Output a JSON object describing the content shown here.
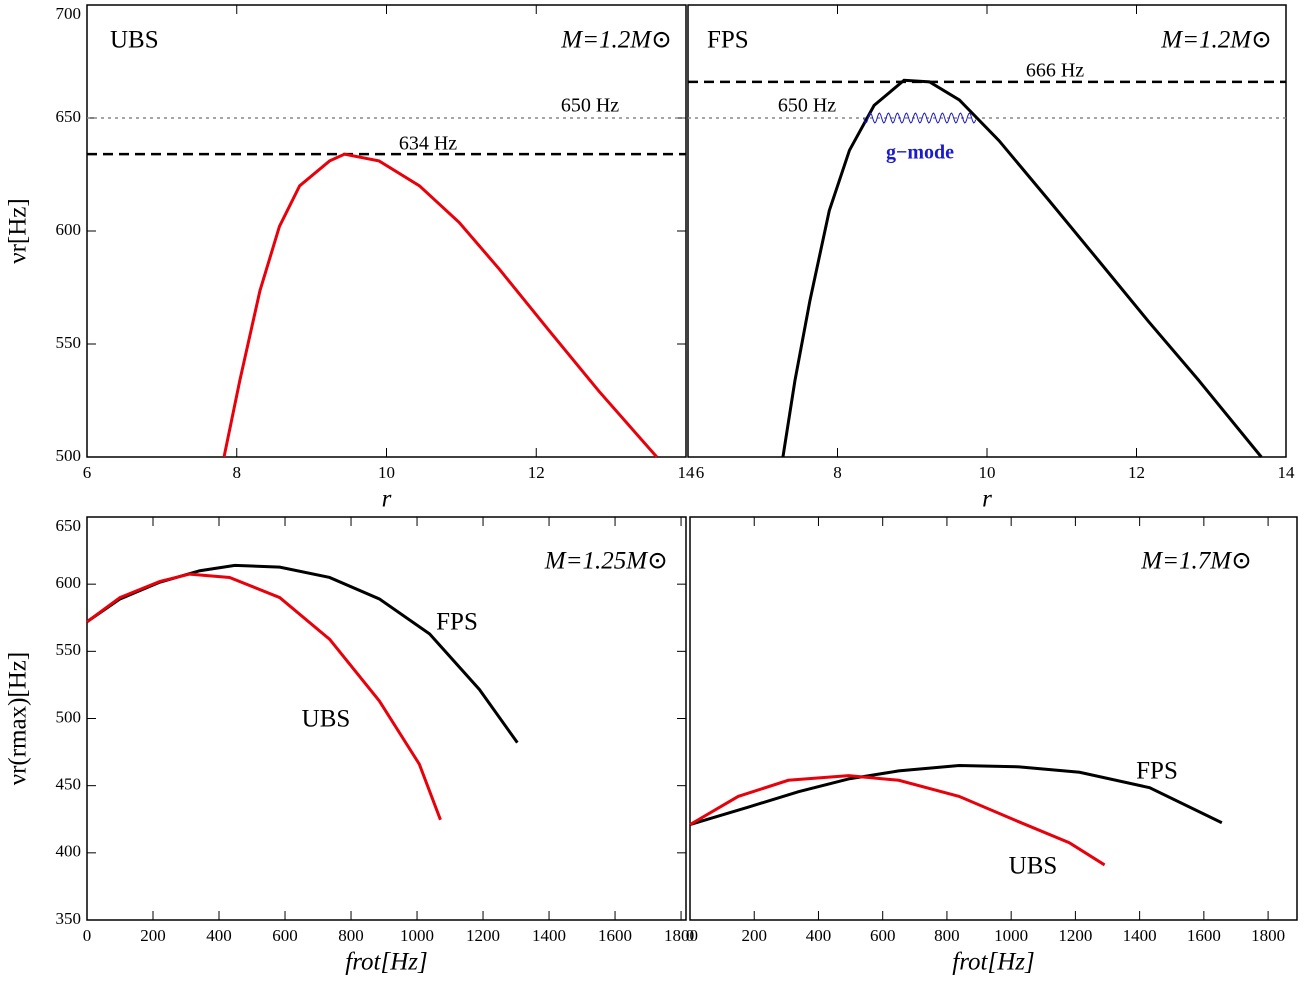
{
  "chart_data": [
    {
      "type": "line",
      "xlim": [
        6,
        14
      ],
      "ylim": [
        500,
        700
      ],
      "xticks": [
        6,
        8,
        10,
        12,
        14
      ],
      "yticks": [
        500,
        550,
        600,
        650,
        700
      ],
      "xlabel": "r",
      "ylabel": "νr[Hz]",
      "series": [
        {
          "name": "UBS",
          "color": "#e8000b",
          "x": [
            7.83,
            8.04,
            8.31,
            8.57,
            8.84,
            9.24,
            9.44,
            9.9,
            10.44,
            10.97,
            11.51,
            12.17,
            12.84,
            13.61
          ],
          "values": [
            500,
            533.7,
            573.6,
            602,
            620,
            631,
            634,
            631,
            620,
            603.8,
            583,
            556,
            529,
            500
          ]
        }
      ],
      "hlines": [
        {
          "value": 650,
          "label": "650 Hz",
          "style": "dotted",
          "color": "#888888"
        },
        {
          "value": 634,
          "label": "634 Hz",
          "style": "dashed",
          "color": "#000000"
        }
      ],
      "annotations": [
        "M=1.2M⊙"
      ]
    },
    {
      "type": "line",
      "xlim": [
        6,
        14
      ],
      "ylim": [
        500,
        700
      ],
      "xticks": [
        6,
        8,
        10,
        12,
        14
      ],
      "xlabel": "r",
      "series": [
        {
          "name": "FPS",
          "color": "#000000",
          "x": [
            7.27,
            7.43,
            7.63,
            7.89,
            8.16,
            8.49,
            8.89,
            9.23,
            9.63,
            10.16,
            10.83,
            11.49,
            12.16,
            12.83,
            13.67
          ],
          "values": [
            500,
            533.7,
            569,
            609,
            635.7,
            655.6,
            666.7,
            666,
            658,
            640,
            613.5,
            587,
            560,
            534,
            500
          ]
        }
      ],
      "hlines": [
        {
          "value": 666,
          "label": "666 Hz",
          "style": "dashed",
          "color": "#000000"
        },
        {
          "value": 650,
          "label": "650 Hz",
          "style": "dotted",
          "color": "#888888"
        }
      ],
      "annotations": [
        "M=1.2M⊙",
        "g−mode"
      ]
    },
    {
      "type": "line",
      "xlim": [
        0,
        1815
      ],
      "ylim": [
        350,
        650
      ],
      "xticks": [
        0,
        200,
        400,
        600,
        800,
        1000,
        1200,
        1400,
        1600,
        1800
      ],
      "yticks": [
        350,
        400,
        450,
        500,
        550,
        600,
        650
      ],
      "xlabel": "frot[Hz]",
      "ylabel": "νr(rmax)[Hz]",
      "series": [
        {
          "name": "FPS",
          "color": "#000000",
          "x": [
            0,
            100,
            221,
            342,
            448,
            584,
            735,
            886,
            1038,
            1189,
            1304
          ],
          "values": [
            572,
            589,
            601.5,
            610,
            614,
            612.7,
            605,
            589,
            563,
            521.6,
            482
          ]
        },
        {
          "name": "UBS",
          "color": "#e8000b",
          "x": [
            0,
            100,
            221,
            311,
            432,
            584,
            735,
            886,
            1007,
            1071
          ],
          "values": [
            572,
            590,
            602,
            607.5,
            605,
            590,
            559,
            513,
            466,
            424.6
          ]
        }
      ],
      "annotations": [
        "M=1.25M⊙"
      ]
    },
    {
      "type": "line",
      "xlim": [
        0,
        1890
      ],
      "ylim": [
        350,
        650
      ],
      "xticks": [
        0,
        200,
        400,
        600,
        800,
        1000,
        1200,
        1400,
        1600,
        1800
      ],
      "xlabel": "frot[Hz]",
      "series": [
        {
          "name": "FPS",
          "color": "#000000",
          "x": [
            0,
            181,
            338,
            494,
            650,
            838,
            1025,
            1213,
            1431,
            1656
          ],
          "values": [
            421,
            434,
            445.5,
            455,
            461,
            465,
            464,
            460,
            448.5,
            422.4
          ]
        },
        {
          "name": "UBS",
          "color": "#e8000b",
          "x": [
            0,
            150,
            306,
            494,
            650,
            838,
            1025,
            1181,
            1291
          ],
          "values": [
            421,
            442,
            454,
            457.5,
            454,
            442,
            423,
            407.5,
            391
          ]
        }
      ],
      "annotations": [
        "M=1.7M⊙"
      ]
    }
  ]
}
